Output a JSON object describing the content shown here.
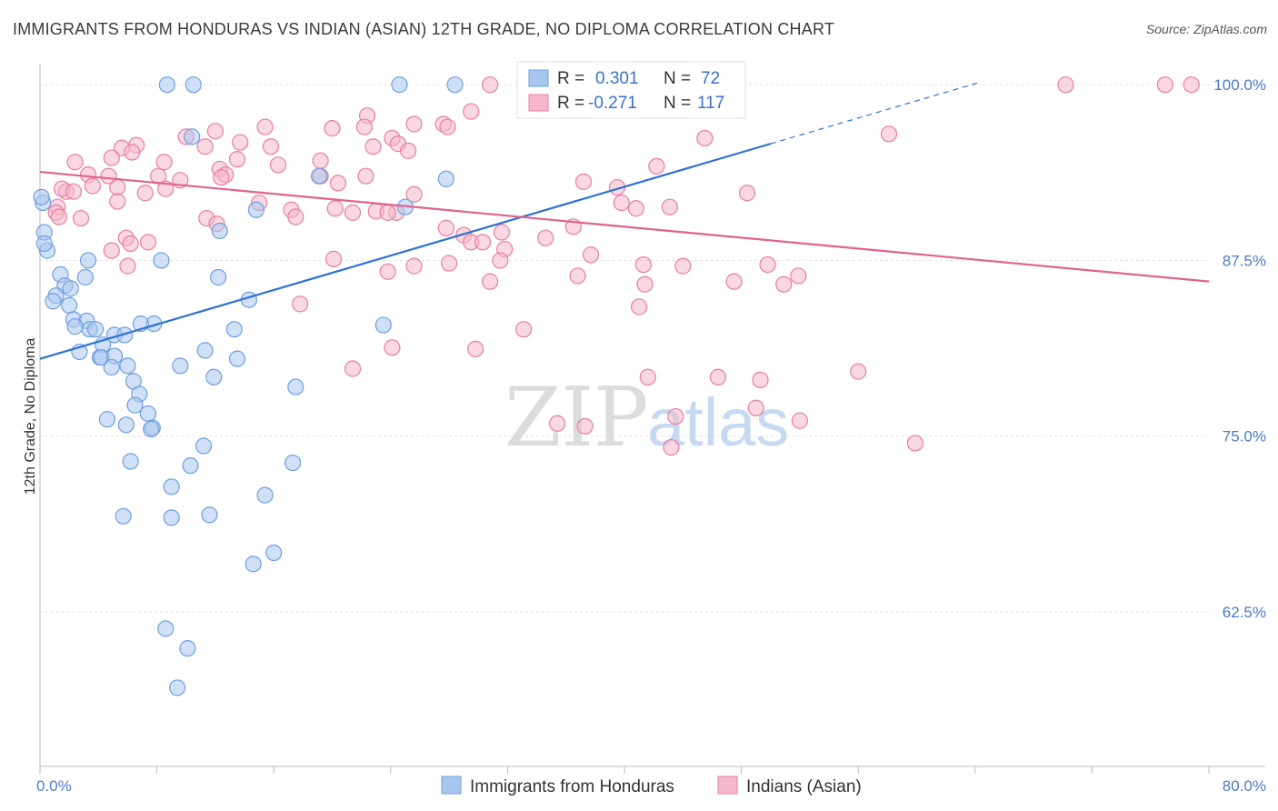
{
  "title": "IMMIGRANTS FROM HONDURAS VS INDIAN (ASIAN) 12TH GRADE, NO DIPLOMA CORRELATION CHART",
  "source": "Source: ZipAtlas.com",
  "watermark": {
    "zip": "ZIP",
    "atlas": "atlas"
  },
  "legend_box": {
    "rows": [
      {
        "r_label": "R =",
        "r_value": "0.301",
        "n_label": "N =",
        "n_value": "72",
        "color": "#a9c6ef"
      },
      {
        "r_label": "R =",
        "r_value": "-0.271",
        "n_label": "N =",
        "n_value": "117",
        "color": "#f5b8cb"
      }
    ]
  },
  "chart_data": {
    "type": "scatter",
    "title": "IMMIGRANTS FROM HONDURAS VS INDIAN (ASIAN) 12TH GRADE, NO DIPLOMA CORRELATION CHART",
    "xlabel": "",
    "ylabel": "12th Grade, No Diploma",
    "xlim": [
      0,
      80
    ],
    "ylim": [
      51.5,
      101.5
    ],
    "x_tick_labels": [
      "0.0%",
      "80.0%"
    ],
    "y_ticks": [
      62.5,
      75.0,
      87.5,
      100.0
    ],
    "y_tick_labels": [
      "62.5%",
      "75.0%",
      "87.5%",
      "100.0%"
    ],
    "grid": true,
    "legend_position": "bottom",
    "series": [
      {
        "name": "Immigrants from Honduras",
        "color": "#6f9fe0",
        "fill": "#a9c6ef",
        "trend": {
          "x0": 0,
          "y0": 80.5,
          "x1": 50,
          "y1": 95.8,
          "dash_to_x": 64.4,
          "dash_to_y": 100.2,
          "color": "#2f72d4"
        },
        "points": [
          [
            8.7,
            100
          ],
          [
            10.5,
            100
          ],
          [
            24.6,
            100
          ],
          [
            28.4,
            100
          ],
          [
            41.0,
            100
          ],
          [
            10.4,
            96.3
          ],
          [
            19.1,
            93.5
          ],
          [
            27.8,
            93.3
          ],
          [
            25.0,
            91.3
          ],
          [
            14.8,
            91.1
          ],
          [
            12.3,
            89.6
          ],
          [
            0.3,
            89.5
          ],
          [
            0.5,
            88.2
          ],
          [
            0.3,
            88.7
          ],
          [
            3.3,
            87.5
          ],
          [
            8.3,
            87.5
          ],
          [
            1.4,
            86.5
          ],
          [
            3.1,
            86.3
          ],
          [
            12.2,
            86.3
          ],
          [
            1.7,
            85.7
          ],
          [
            2.1,
            85.5
          ],
          [
            1.1,
            85.0
          ],
          [
            0.9,
            84.6
          ],
          [
            14.3,
            84.7
          ],
          [
            2.0,
            84.3
          ],
          [
            2.3,
            83.3
          ],
          [
            3.2,
            83.2
          ],
          [
            2.4,
            82.8
          ],
          [
            3.4,
            82.6
          ],
          [
            3.8,
            82.6
          ],
          [
            7.8,
            83.0
          ],
          [
            6.9,
            83.0
          ],
          [
            23.5,
            82.9
          ],
          [
            13.3,
            82.6
          ],
          [
            5.1,
            82.2
          ],
          [
            5.8,
            82.2
          ],
          [
            4.3,
            81.5
          ],
          [
            2.7,
            81.0
          ],
          [
            11.3,
            81.1
          ],
          [
            4.1,
            80.6
          ],
          [
            4.2,
            80.6
          ],
          [
            5.1,
            80.7
          ],
          [
            6.0,
            80.0
          ],
          [
            9.6,
            80.0
          ],
          [
            13.5,
            80.5
          ],
          [
            4.9,
            79.9
          ],
          [
            11.9,
            79.2
          ],
          [
            6.4,
            78.9
          ],
          [
            17.5,
            78.5
          ],
          [
            6.8,
            78.0
          ],
          [
            6.5,
            77.2
          ],
          [
            7.4,
            76.6
          ],
          [
            4.6,
            76.2
          ],
          [
            5.9,
            75.8
          ],
          [
            7.7,
            75.6
          ],
          [
            7.6,
            75.5
          ],
          [
            11.2,
            74.3
          ],
          [
            6.2,
            73.2
          ],
          [
            10.3,
            72.9
          ],
          [
            17.3,
            73.1
          ],
          [
            9.0,
            71.4
          ],
          [
            15.4,
            70.8
          ],
          [
            5.7,
            69.3
          ],
          [
            9.0,
            69.2
          ],
          [
            11.6,
            69.4
          ],
          [
            16.0,
            66.7
          ],
          [
            14.6,
            65.9
          ],
          [
            8.6,
            61.3
          ],
          [
            10.1,
            59.9
          ],
          [
            9.4,
            57.1
          ],
          [
            0.2,
            91.6
          ],
          [
            0.1,
            92.0
          ]
        ]
      },
      {
        "name": "Indians (Asian)",
        "color": "#e77ea0",
        "fill": "#f5b8cb",
        "trend": {
          "x0": 0,
          "y0": 93.8,
          "x1": 80,
          "y1": 86.0,
          "color": "#e0628f"
        },
        "points": [
          [
            30.8,
            100
          ],
          [
            41.2,
            100
          ],
          [
            70.2,
            100
          ],
          [
            77.0,
            100
          ],
          [
            78.8,
            100
          ],
          [
            41.0,
            100
          ],
          [
            22.4,
            97.8
          ],
          [
            29.5,
            98.1
          ],
          [
            27.6,
            97.2
          ],
          [
            27.9,
            97.0
          ],
          [
            22.2,
            97.0
          ],
          [
            20.0,
            96.9
          ],
          [
            15.4,
            97.0
          ],
          [
            25.6,
            97.2
          ],
          [
            24.1,
            96.2
          ],
          [
            12.0,
            96.7
          ],
          [
            10.0,
            96.3
          ],
          [
            24.5,
            95.8
          ],
          [
            22.8,
            95.6
          ],
          [
            15.8,
            95.6
          ],
          [
            19.2,
            94.6
          ],
          [
            13.7,
            95.9
          ],
          [
            13.5,
            94.7
          ],
          [
            16.3,
            94.3
          ],
          [
            11.3,
            95.6
          ],
          [
            6.6,
            95.7
          ],
          [
            5.6,
            95.5
          ],
          [
            6.3,
            95.2
          ],
          [
            4.9,
            94.8
          ],
          [
            2.4,
            94.5
          ],
          [
            25.2,
            95.3
          ],
          [
            8.5,
            94.5
          ],
          [
            8.1,
            93.5
          ],
          [
            12.3,
            94.0
          ],
          [
            19.2,
            93.5
          ],
          [
            20.4,
            93.0
          ],
          [
            3.3,
            93.6
          ],
          [
            4.7,
            93.5
          ],
          [
            12.7,
            93.6
          ],
          [
            12.4,
            93.4
          ],
          [
            9.6,
            93.2
          ],
          [
            22.3,
            93.5
          ],
          [
            37.2,
            93.1
          ],
          [
            39.5,
            92.7
          ],
          [
            42.2,
            94.2
          ],
          [
            25.6,
            92.2
          ],
          [
            48.4,
            92.3
          ],
          [
            58.1,
            96.5
          ],
          [
            45.5,
            96.2
          ],
          [
            1.8,
            92.4
          ],
          [
            1.5,
            92.6
          ],
          [
            2.3,
            92.4
          ],
          [
            3.6,
            92.8
          ],
          [
            5.3,
            92.7
          ],
          [
            7.2,
            92.3
          ],
          [
            8.6,
            92.6
          ],
          [
            5.3,
            91.7
          ],
          [
            15.0,
            91.6
          ],
          [
            1.2,
            91.3
          ],
          [
            1.1,
            90.9
          ],
          [
            17.2,
            91.1
          ],
          [
            17.5,
            90.6
          ],
          [
            20.2,
            91.2
          ],
          [
            21.4,
            90.9
          ],
          [
            23.0,
            91.0
          ],
          [
            24.4,
            90.9
          ],
          [
            39.8,
            91.6
          ],
          [
            40.8,
            91.2
          ],
          [
            43.1,
            91.3
          ],
          [
            23.8,
            90.9
          ],
          [
            2.8,
            90.5
          ],
          [
            11.4,
            90.5
          ],
          [
            12.1,
            90.1
          ],
          [
            1.3,
            90.6
          ],
          [
            36.5,
            89.9
          ],
          [
            31.6,
            89.5
          ],
          [
            29.0,
            89.3
          ],
          [
            27.8,
            89.8
          ],
          [
            29.5,
            88.8
          ],
          [
            34.6,
            89.1
          ],
          [
            30.3,
            88.8
          ],
          [
            31.8,
            88.3
          ],
          [
            31.5,
            87.5
          ],
          [
            28.0,
            87.3
          ],
          [
            37.7,
            87.9
          ],
          [
            4.9,
            88.2
          ],
          [
            5.9,
            89.1
          ],
          [
            6.2,
            88.7
          ],
          [
            7.4,
            88.8
          ],
          [
            20.1,
            87.6
          ],
          [
            41.3,
            87.2
          ],
          [
            44.0,
            87.1
          ],
          [
            49.8,
            87.2
          ],
          [
            6.0,
            87.1
          ],
          [
            25.6,
            87.1
          ],
          [
            23.8,
            86.7
          ],
          [
            36.8,
            86.4
          ],
          [
            30.8,
            86.0
          ],
          [
            47.5,
            86.0
          ],
          [
            41.4,
            85.8
          ],
          [
            51.9,
            86.4
          ],
          [
            50.9,
            85.8
          ],
          [
            17.8,
            84.4
          ],
          [
            33.1,
            82.6
          ],
          [
            41.0,
            84.2
          ],
          [
            24.1,
            81.3
          ],
          [
            29.8,
            81.2
          ],
          [
            21.4,
            79.8
          ],
          [
            41.6,
            79.2
          ],
          [
            46.4,
            79.2
          ],
          [
            49.3,
            79.0
          ],
          [
            56.0,
            79.6
          ],
          [
            49.0,
            77.0
          ],
          [
            43.5,
            76.4
          ],
          [
            37.3,
            75.7
          ],
          [
            35.4,
            75.9
          ],
          [
            52.0,
            76.1
          ],
          [
            59.9,
            74.5
          ],
          [
            43.2,
            74.2
          ]
        ]
      }
    ]
  },
  "bottom_legend": [
    {
      "label": "Immigrants from Honduras"
    },
    {
      "label": "Indians (Asian)"
    }
  ]
}
